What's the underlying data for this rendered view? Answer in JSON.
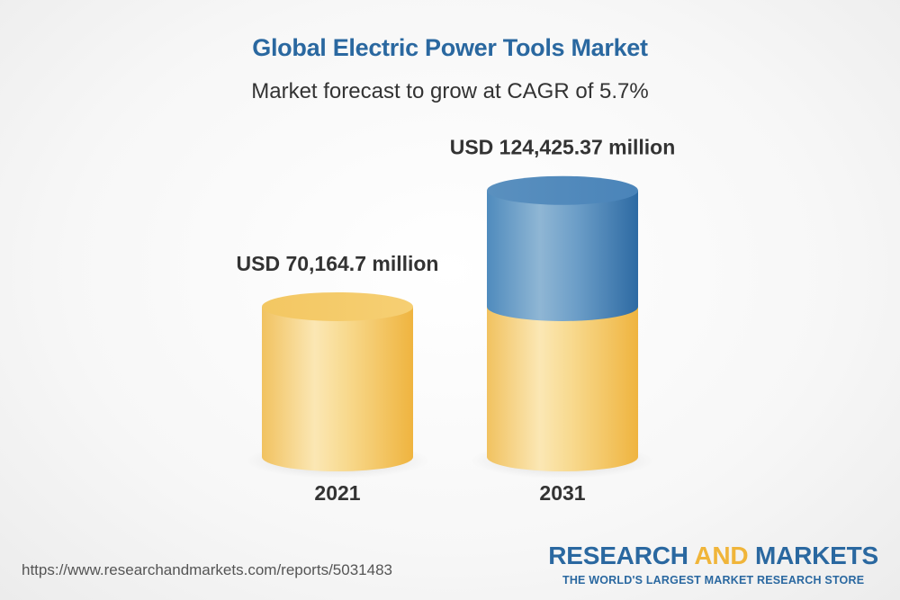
{
  "header": {
    "title": "Global Electric Power Tools Market",
    "subtitle": "Market forecast to grow at CAGR of 5.7%"
  },
  "chart_data": {
    "type": "bar",
    "style": "3d-cylinder",
    "title": "Global Electric Power Tools Market",
    "subtitle": "Market forecast to grow at CAGR of 5.7%",
    "categories": [
      "2021",
      "2031"
    ],
    "values": [
      70164.7,
      124425.37
    ],
    "unit": "USD million",
    "data_labels": [
      "USD 70,164.7 million",
      "USD 124,425.37 million"
    ],
    "cagr": "5.7%",
    "colors": {
      "base": "#f4c45a",
      "growth": "#3f7fb4"
    }
  },
  "footer": {
    "source_url": "https://www.researchandmarkets.com/reports/5031483",
    "brand_part1": "RESEARCH ",
    "brand_part2": "AND",
    "brand_part3": " MARKETS",
    "brand_tagline": "THE WORLD'S LARGEST MARKET RESEARCH STORE"
  }
}
